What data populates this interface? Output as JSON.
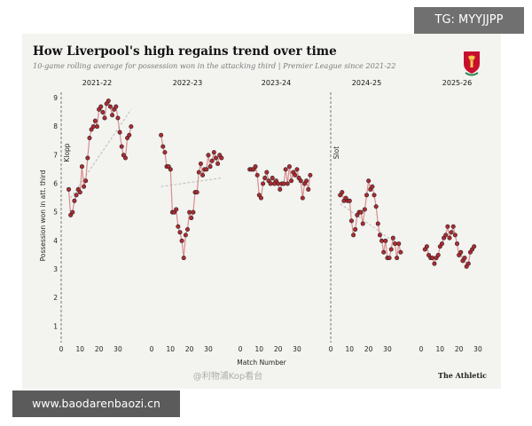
{
  "watermarks": {
    "tg": "TG: MYYJJPP",
    "site": "www.baodarenbaozi.cn",
    "overlay": "@利物浦Kop看台"
  },
  "source": "The Athletic",
  "colors": {
    "line": "#d88f8f",
    "marker_fill": "#b12a30",
    "marker_stroke": "#222222",
    "trend": "#bdbdbd",
    "background": "#f3f3f0"
  },
  "chart_data": {
    "type": "line",
    "title": "How Liverpool's high regains trend over time",
    "subtitle": "10-game rolling average for possession won in the attacking third | Premier League since 2021-22",
    "xlabel": "Match Number",
    "ylabel": "Possession won in att. third",
    "ylim": [
      0.5,
      9.2
    ],
    "xlim": [
      0,
      38
    ],
    "yticks": [
      1,
      2,
      3,
      4,
      5,
      6,
      7,
      8,
      9
    ],
    "xticks": [
      0,
      10,
      20,
      30
    ],
    "annotations": [
      {
        "panel": "2021-22",
        "text": "Klopp"
      },
      {
        "panel": "2024-25",
        "text": "Slot"
      }
    ],
    "series": [
      {
        "name": "2021-22",
        "x": [
          4,
          5,
          6,
          7,
          8,
          9,
          10,
          11,
          12,
          13,
          14,
          15,
          16,
          17,
          18,
          19,
          20,
          21,
          22,
          23,
          24,
          25,
          26,
          27,
          28,
          29,
          30,
          31,
          32,
          33,
          34,
          35,
          36,
          37
        ],
        "y": [
          5.8,
          4.9,
          5.0,
          5.4,
          5.6,
          5.8,
          5.7,
          6.6,
          5.9,
          6.1,
          6.9,
          7.6,
          7.9,
          8.0,
          8.2,
          8.0,
          8.6,
          8.7,
          8.5,
          8.3,
          8.8,
          8.9,
          8.7,
          8.4,
          8.6,
          8.7,
          8.3,
          7.8,
          7.3,
          7.0,
          6.9,
          7.6,
          7.7,
          8.0
        ],
        "trend": [
          [
            5,
            5.5
          ],
          [
            37,
            8.6
          ]
        ]
      },
      {
        "name": "2022-23",
        "x": [
          5,
          6,
          7,
          8,
          9,
          10,
          11,
          12,
          13,
          14,
          15,
          16,
          17,
          18,
          19,
          20,
          21,
          22,
          23,
          24,
          25,
          26,
          27,
          28,
          29,
          30,
          31,
          32,
          33,
          34,
          35,
          36,
          37
        ],
        "y": [
          7.7,
          7.3,
          7.1,
          6.6,
          6.6,
          6.5,
          5.0,
          5.0,
          5.1,
          4.5,
          4.3,
          4.0,
          3.4,
          4.2,
          4.4,
          5.0,
          4.8,
          5.0,
          5.7,
          5.7,
          6.4,
          6.7,
          6.3,
          6.5,
          6.5,
          7.0,
          6.6,
          6.8,
          7.1,
          6.9,
          6.7,
          7.0,
          6.9
        ],
        "trend": [
          [
            5,
            5.9
          ],
          [
            37,
            6.2
          ]
        ]
      },
      {
        "name": "2023-24",
        "x": [
          5,
          6,
          7,
          8,
          9,
          10,
          11,
          12,
          13,
          14,
          15,
          16,
          17,
          18,
          19,
          20,
          21,
          22,
          23,
          24,
          25,
          26,
          27,
          28,
          29,
          30,
          31,
          32,
          33,
          34,
          35,
          36,
          37
        ],
        "y": [
          6.5,
          6.5,
          6.5,
          6.6,
          6.3,
          5.6,
          5.5,
          6.0,
          6.2,
          6.4,
          6.1,
          6.0,
          6.2,
          6.0,
          6.1,
          6.0,
          5.8,
          6.0,
          6.0,
          6.5,
          6.0,
          6.6,
          6.1,
          6.4,
          6.3,
          6.5,
          6.2,
          6.1,
          5.5,
          6.0,
          6.1,
          5.8,
          6.3
        ],
        "trend": []
      },
      {
        "name": "2024-25",
        "x": [
          5,
          6,
          7,
          8,
          9,
          10,
          11,
          12,
          13,
          14,
          15,
          16,
          17,
          18,
          19,
          20,
          21,
          22,
          23,
          24,
          25,
          26,
          27,
          28,
          29,
          30,
          31,
          32,
          33,
          34,
          35,
          36,
          37
        ],
        "y": [
          5.6,
          5.7,
          5.4,
          5.5,
          5.4,
          5.4,
          4.7,
          4.2,
          4.4,
          4.9,
          5.0,
          5.0,
          4.6,
          5.1,
          5.6,
          6.1,
          5.8,
          5.9,
          5.6,
          5.2,
          4.6,
          4.2,
          4.0,
          3.6,
          4.0,
          3.4,
          3.4,
          3.7,
          4.1,
          3.9,
          3.4,
          3.9,
          3.6
        ],
        "trend": [
          [
            5,
            5.3
          ],
          [
            37,
            3.8
          ]
        ]
      },
      {
        "name": "2025-26",
        "x": [
          2,
          3,
          4,
          5,
          6,
          7,
          8,
          9,
          10,
          11,
          12,
          13,
          14,
          15,
          16,
          17,
          18,
          19,
          20,
          21,
          22,
          23,
          24,
          25,
          26,
          27,
          28
        ],
        "y": [
          3.7,
          3.8,
          3.5,
          3.4,
          3.4,
          3.2,
          3.4,
          3.5,
          3.8,
          3.9,
          4.1,
          4.2,
          4.5,
          4.1,
          4.3,
          4.5,
          4.2,
          3.9,
          3.5,
          3.6,
          3.3,
          3.4,
          3.1,
          3.2,
          3.6,
          3.7,
          3.8
        ],
        "trend": []
      }
    ]
  }
}
